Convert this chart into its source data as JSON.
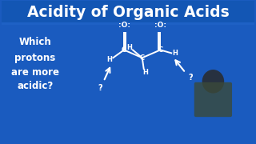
{
  "title": "Acidity of Organic Acids",
  "title_color": "#ffffff",
  "title_fontsize": 13.5,
  "title_fontweight": "bold",
  "bg_color": "#1a5bbf",
  "question_lines": [
    "Which",
    "protons",
    "are more",
    "acidic?"
  ],
  "question_color": "#ffffff",
  "question_fontsize": 8.5,
  "mol_color": "#ffffff",
  "mol_lw": 1.4,
  "mol_fs": 6.0,
  "arrow_color": "#ffffff",
  "qmark_color": "#ffffff",
  "qmark_fs": 7.0
}
